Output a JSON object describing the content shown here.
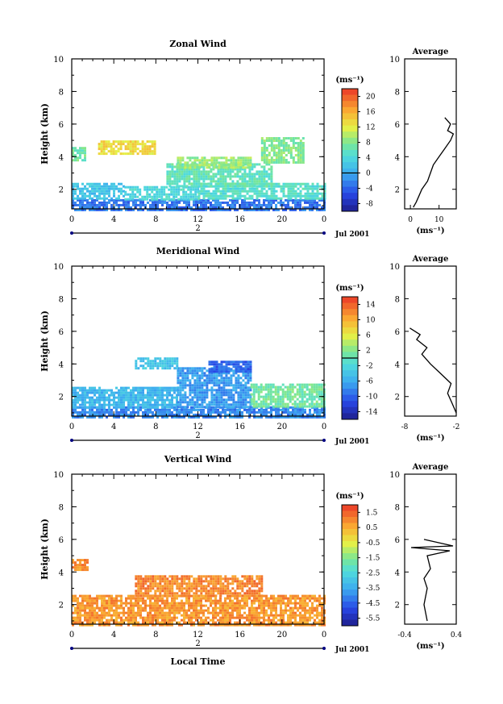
{
  "panels": [
    {
      "title": "Zonal Wind",
      "ylabel": "Height (km)",
      "yticks": [
        2,
        4,
        6,
        8,
        10
      ],
      "ylim": [
        0.8,
        10
      ],
      "xticks": [
        "0",
        "4",
        "8",
        "12",
        "16",
        "20",
        "0"
      ],
      "xlim": [
        0,
        24
      ],
      "day_label": "2",
      "date_label": "Jul 2001",
      "unit_label": "(ms⁻¹)",
      "colorbar": {
        "ticks": [
          "20",
          "16",
          "12",
          "8",
          "4",
          "0",
          "-4",
          "-8"
        ],
        "range": [
          -10,
          22
        ],
        "zero_line": 0
      },
      "average": {
        "title": "Average",
        "xticks": [
          "0",
          "10"
        ],
        "xlim": [
          -2,
          16
        ],
        "unit": "(ms⁻¹)"
      }
    },
    {
      "title": "Meridional Wind",
      "ylabel": "Height (km)",
      "yticks": [
        2,
        4,
        6,
        8,
        10
      ],
      "ylim": [
        0.8,
        10
      ],
      "xticks": [
        "0",
        "4",
        "8",
        "12",
        "16",
        "20",
        "0"
      ],
      "xlim": [
        0,
        24
      ],
      "day_label": "2",
      "date_label": "Jul 2001",
      "unit_label": "(ms⁻¹)",
      "colorbar": {
        "ticks": [
          "14",
          "10",
          "6",
          "2",
          "-2",
          "-6",
          "-10",
          "-14"
        ],
        "range": [
          -16,
          16
        ],
        "zero_line": 0
      },
      "average": {
        "title": "Average",
        "xticks": [
          "-8",
          "-2"
        ],
        "xlim": [
          -8,
          -2
        ],
        "unit": "(ms⁻¹)"
      }
    },
    {
      "title": "Vertical Wind",
      "ylabel": "Height (km)",
      "yticks": [
        2,
        4,
        6,
        8,
        10
      ],
      "ylim": [
        0.8,
        10
      ],
      "xticks": [
        "0",
        "4",
        "8",
        "12",
        "16",
        "20",
        "0"
      ],
      "xlim": [
        0,
        24
      ],
      "day_label": "2",
      "date_label": "Jul 2001",
      "unit_label": "(ms⁻¹)",
      "xlabel": "Local Time",
      "colorbar": {
        "ticks": [
          "1.5",
          "0.5",
          "-0.5",
          "-1.5",
          "-2.5",
          "-3.5",
          "-4.5",
          "-5.5"
        ],
        "range": [
          -6,
          2
        ]
      },
      "average": {
        "title": "Average",
        "xticks": [
          "-0.4",
          "0.4"
        ],
        "xlim": [
          -0.4,
          0.4
        ],
        "unit": "(ms⁻¹)"
      }
    }
  ],
  "chart_data": [
    {
      "type": "heatmap",
      "title": "Zonal Wind",
      "ylabel": "Height (km)",
      "x_range": [
        0,
        24
      ],
      "y_range": [
        0.8,
        10
      ],
      "regions": [
        {
          "x0": 0,
          "x1": 24,
          "y0": 0.8,
          "y1": 1.4,
          "value": -3
        },
        {
          "x0": 0,
          "x1": 5,
          "y0": 1.4,
          "y1": 2.4,
          "value": 2
        },
        {
          "x0": 5,
          "x1": 12,
          "y0": 1.4,
          "y1": 2.2,
          "value": 4
        },
        {
          "x0": 12,
          "x1": 24,
          "y0": 1.4,
          "y1": 2.4,
          "value": 5
        },
        {
          "x0": 9,
          "x1": 19,
          "y0": 2.2,
          "y1": 3.6,
          "value": 6
        },
        {
          "x0": 0,
          "x1": 1.2,
          "y0": 3.8,
          "y1": 4.6,
          "value": 7
        },
        {
          "x0": 2.5,
          "x1": 8,
          "y0": 4.2,
          "y1": 5.0,
          "value": 13
        },
        {
          "x0": 10,
          "x1": 17,
          "y0": 3.4,
          "y1": 4.0,
          "value": 9
        },
        {
          "x0": 18,
          "x1": 22,
          "y0": 3.6,
          "y1": 5.2,
          "value": 8
        }
      ],
      "average_profile": {
        "x": [
          1,
          2,
          3,
          4,
          6,
          7,
          8,
          10,
          12,
          14,
          15,
          13,
          14,
          12
        ],
        "y": [
          0.9,
          1.2,
          1.6,
          2.0,
          2.5,
          3.0,
          3.5,
          4.0,
          4.5,
          5.0,
          5.4,
          5.6,
          6.0,
          6.4
        ]
      }
    },
    {
      "type": "heatmap",
      "title": "Meridional Wind",
      "ylabel": "Height (km)",
      "x_range": [
        0,
        24
      ],
      "y_range": [
        0.8,
        10
      ],
      "regions": [
        {
          "x0": 0,
          "x1": 24,
          "y0": 0.8,
          "y1": 1.4,
          "value": -8
        },
        {
          "x0": 0,
          "x1": 10,
          "y0": 1.4,
          "y1": 2.6,
          "value": -5
        },
        {
          "x0": 10,
          "x1": 17,
          "y0": 1.4,
          "y1": 3.8,
          "value": -7
        },
        {
          "x0": 17,
          "x1": 24,
          "y0": 1.4,
          "y1": 2.8,
          "value": 1
        },
        {
          "x0": 6,
          "x1": 10,
          "y0": 3.8,
          "y1": 4.4,
          "value": -4
        },
        {
          "x0": 13,
          "x1": 17,
          "y0": 3.6,
          "y1": 4.2,
          "value": -10
        }
      ],
      "average_profile": {
        "x": [
          -2,
          -2.5,
          -3,
          -2.6,
          -3.8,
          -5,
          -6,
          -5.4,
          -6.6,
          -6.2,
          -7.4
        ],
        "y": [
          1.0,
          1.6,
          2.2,
          2.8,
          3.4,
          4.0,
          4.6,
          5.0,
          5.5,
          5.8,
          6.2
        ]
      }
    },
    {
      "type": "heatmap",
      "title": "Vertical Wind",
      "ylabel": "Height (km)",
      "xlabel": "Local Time",
      "x_range": [
        0,
        24
      ],
      "y_range": [
        0.8,
        10
      ],
      "regions": [
        {
          "x0": 0,
          "x1": 24,
          "y0": 0.8,
          "y1": 2.6,
          "value": 0.8
        },
        {
          "x0": 6,
          "x1": 18,
          "y0": 2.6,
          "y1": 3.8,
          "value": 1.0
        },
        {
          "x0": 0,
          "x1": 1.5,
          "y0": 4.2,
          "y1": 4.8,
          "value": 0.9
        }
      ],
      "average_profile": {
        "x": [
          -0.05,
          -0.1,
          -0.05,
          -0.1,
          0.0,
          -0.05,
          0.3,
          -0.3,
          0.35,
          -0.1
        ],
        "y": [
          1.0,
          2.0,
          3.0,
          3.6,
          4.2,
          5.0,
          5.3,
          5.5,
          5.6,
          6.0
        ]
      }
    }
  ]
}
